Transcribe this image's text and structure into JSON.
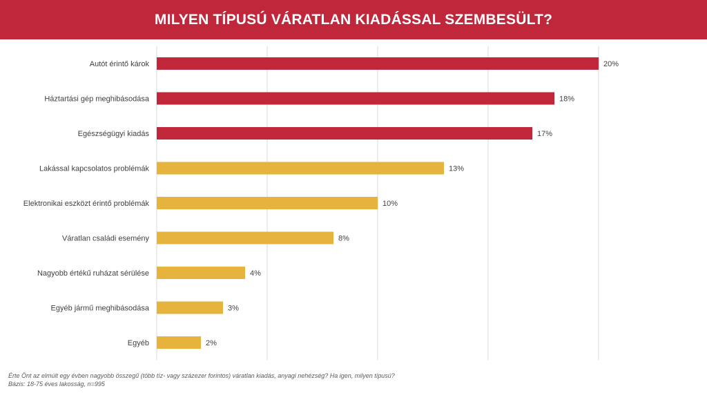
{
  "header": {
    "title": "MILYEN TÍPUSÚ VÁRATLAN KIADÁSSAL SZEMBESÜLT?"
  },
  "colors": {
    "header": "#c1273b",
    "top_bars": "#c1273b",
    "other_bars": "#e6b43c",
    "grid": "#d9d9d9"
  },
  "chart_data": {
    "type": "bar",
    "orientation": "horizontal",
    "title": "MILYEN TÍPUSÚ VÁRATLAN KIADÁSSAL SZEMBESÜLT?",
    "categories": [
      "Autót érintő károk",
      "Háztartási gép meghibásodása",
      "Egészségügyi kiadás",
      "Lakással kapcsolatos problémák",
      "Elektronikai eszközt érintő problémák",
      "Váratlan családi esemény",
      "Nagyobb értékű ruházat sérülése",
      "Egyéb jármű meghibásodása",
      "Egyéb"
    ],
    "values": [
      20,
      18,
      17,
      13,
      10,
      8,
      4,
      3,
      2
    ],
    "value_labels": [
      "20%",
      "18%",
      "17%",
      "13%",
      "10%",
      "8%",
      "4%",
      "3%",
      "2%"
    ],
    "bar_colors": [
      "#c1273b",
      "#c1273b",
      "#c1273b",
      "#e6b43c",
      "#e6b43c",
      "#e6b43c",
      "#e6b43c",
      "#e6b43c",
      "#e6b43c"
    ],
    "xlim": [
      0,
      20
    ],
    "gridlines": [
      0,
      5,
      10,
      15,
      20
    ],
    "grid": true,
    "legend": false
  },
  "footnote": {
    "line1": "Érte Önt az elmúlt egy évben nagyobb összegű (több tíz- vagy százezer forintos) váratlan kiadás, anyagi nehézség? Ha igen, milyen típusú?",
    "line2": "Bázis: 18-75 éves lakosság, n=995"
  }
}
